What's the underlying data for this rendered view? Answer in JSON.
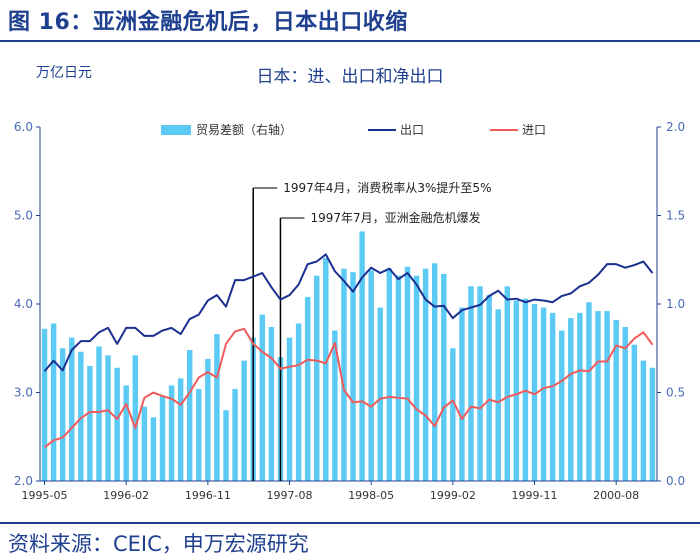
{
  "header": {
    "figure_title": "图 16：亚洲金融危机后，日本出口收缩",
    "source": "资料来源：CEIC，申万宏源研究"
  },
  "chart_data": {
    "type": "bar+line",
    "title": "日本：进、出口和净出口",
    "left_unit": "万亿日元",
    "y_left": {
      "min": 2.0,
      "max": 6.0,
      "ticks": [
        "2.0",
        "3.0",
        "4.0",
        "5.0",
        "6.0"
      ]
    },
    "y_right": {
      "min": 0.0,
      "max": 2.0,
      "ticks": [
        "0.0",
        "0.5",
        "1.0",
        "1.5",
        "2.0"
      ]
    },
    "x_tick_labels": [
      "1995-05",
      "1996-02",
      "1996-11",
      "1997-08",
      "1998-05",
      "1999-02",
      "1999-11",
      "2000-08"
    ],
    "x_tick_index": [
      0,
      9,
      18,
      27,
      36,
      45,
      54,
      63
    ],
    "legend": [
      "贸易差额（右轴）",
      "出口",
      "进口"
    ],
    "colors": {
      "bar": "#5bcbf5",
      "export": "#1a2f8f",
      "import": "#f05a5a",
      "axis": "#1f3f8f"
    },
    "trade_balance_right_axis": [
      0.86,
      0.89,
      0.75,
      0.81,
      0.73,
      0.65,
      0.76,
      0.71,
      0.64,
      0.54,
      0.71,
      0.42,
      0.36,
      0.48,
      0.54,
      0.58,
      0.74,
      0.52,
      0.69,
      0.83,
      0.4,
      0.52,
      0.68,
      0.81,
      0.94,
      0.87,
      0.7,
      0.81,
      0.89,
      1.04,
      1.16,
      1.26,
      0.85,
      1.2,
      1.18,
      1.41,
      1.19,
      0.98,
      1.2,
      1.16,
      1.21,
      1.16,
      1.2,
      1.23,
      1.17,
      0.75,
      0.98,
      1.1,
      1.1,
      1.05,
      0.97,
      1.1,
      1.02,
      1.03,
      1.0,
      0.98,
      0.95,
      0.85,
      0.92,
      0.95,
      1.01,
      0.96,
      0.96,
      0.91,
      0.87,
      0.77,
      0.68,
      0.64
    ],
    "exports": [
      3.24,
      3.36,
      3.25,
      3.48,
      3.58,
      3.58,
      3.68,
      3.73,
      3.55,
      3.73,
      3.73,
      3.64,
      3.64,
      3.7,
      3.73,
      3.66,
      3.83,
      3.88,
      4.04,
      4.1,
      3.97,
      4.27,
      4.27,
      4.31,
      4.35,
      4.19,
      4.05,
      4.1,
      4.22,
      4.45,
      4.48,
      4.56,
      4.37,
      4.26,
      4.14,
      4.3,
      4.41,
      4.35,
      4.4,
      4.28,
      4.35,
      4.22,
      4.05,
      3.97,
      3.98,
      3.84,
      3.93,
      3.96,
      3.99,
      4.09,
      4.15,
      4.05,
      4.06,
      4.02,
      4.05,
      4.04,
      4.02,
      4.09,
      4.12,
      4.2,
      4.24,
      4.33,
      4.45,
      4.45,
      4.41,
      4.44,
      4.48,
      4.35
    ],
    "imports": [
      2.38,
      2.46,
      2.49,
      2.6,
      2.71,
      2.78,
      2.78,
      2.8,
      2.7,
      2.87,
      2.6,
      2.94,
      3.0,
      2.96,
      2.93,
      2.86,
      3.0,
      3.17,
      3.23,
      3.17,
      3.55,
      3.69,
      3.72,
      3.55,
      3.46,
      3.39,
      3.27,
      3.29,
      3.31,
      3.37,
      3.36,
      3.33,
      3.56,
      3.03,
      2.89,
      2.9,
      2.84,
      2.93,
      2.95,
      2.94,
      2.93,
      2.81,
      2.74,
      2.62,
      2.83,
      2.91,
      2.7,
      2.84,
      2.82,
      2.92,
      2.89,
      2.95,
      2.98,
      3.02,
      2.98,
      3.05,
      3.07,
      3.13,
      3.21,
      3.25,
      3.24,
      3.35,
      3.35,
      3.53,
      3.5,
      3.61,
      3.68,
      3.54
    ],
    "annotations": [
      {
        "label": "1997年4月，消费税率从3%提升至5%",
        "index": 23
      },
      {
        "label": "1997年7月，亚洲金融危机爆发",
        "index": 26
      }
    ]
  }
}
